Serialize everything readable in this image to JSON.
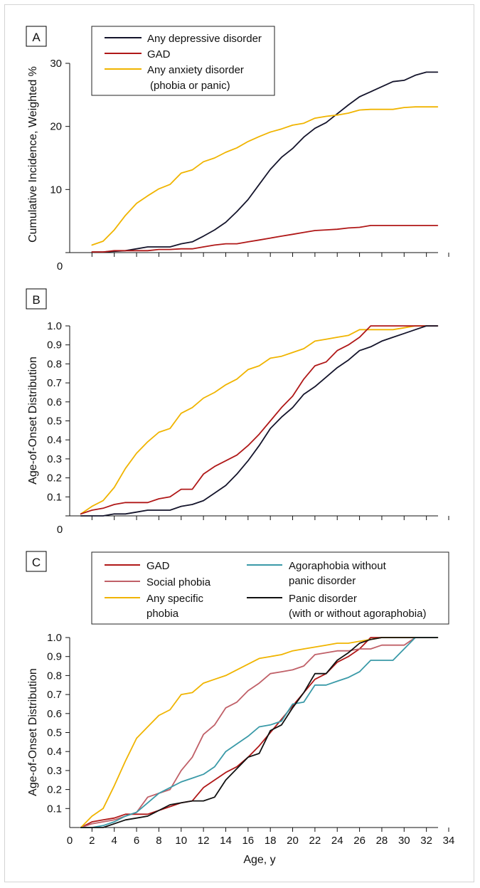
{
  "chart_data": [
    {
      "panel_label": "A",
      "type": "line",
      "xlabel": "",
      "ylabel": "Cumulative Incidence, Weighted %",
      "xlim": [
        0,
        34
      ],
      "ylim": [
        0,
        30
      ],
      "y_ticks": [
        "0",
        "10",
        "20",
        "30"
      ],
      "x_tick_values": [
        2,
        4,
        6,
        8,
        10,
        12,
        14,
        16,
        18,
        20,
        22,
        24,
        26,
        28,
        30,
        32,
        34
      ],
      "x_tick_labels_shown": false,
      "legend_position": "top-left",
      "series": [
        {
          "name": "Any depressive disorder",
          "color": "#14142b",
          "x": [
            2,
            3,
            4,
            5,
            6,
            7,
            8,
            9,
            10,
            11,
            12,
            13,
            14,
            15,
            16,
            17,
            18,
            19,
            20,
            21,
            22,
            23,
            24,
            25,
            26,
            27,
            28,
            29,
            30,
            31,
            32,
            33
          ],
          "y": [
            0.1,
            0.1,
            0.2,
            0.3,
            0.6,
            0.9,
            0.9,
            0.9,
            1.4,
            1.7,
            2.6,
            3.6,
            4.8,
            6.5,
            8.4,
            10.8,
            13.2,
            15.1,
            16.5,
            18.3,
            19.7,
            20.6,
            22.0,
            23.4,
            24.7,
            25.5,
            26.3,
            27.1,
            27.3,
            28.1,
            28.6,
            28.6
          ]
        },
        {
          "name": "GAD",
          "color": "#b01818",
          "x": [
            2,
            3,
            4,
            5,
            6,
            7,
            8,
            9,
            10,
            11,
            12,
            13,
            14,
            15,
            16,
            17,
            18,
            19,
            20,
            21,
            22,
            23,
            24,
            25,
            26,
            27,
            28,
            29,
            30,
            31,
            32,
            33
          ],
          "y": [
            0.1,
            0.1,
            0.3,
            0.3,
            0.3,
            0.3,
            0.5,
            0.5,
            0.6,
            0.6,
            0.9,
            1.2,
            1.4,
            1.4,
            1.7,
            2.0,
            2.3,
            2.6,
            2.9,
            3.2,
            3.5,
            3.6,
            3.7,
            3.9,
            4.0,
            4.3,
            4.3,
            4.3,
            4.3,
            4.3,
            4.3,
            4.3
          ]
        },
        {
          "name": "Any anxiety disorder",
          "name_line2": "(phobia or panic)",
          "color": "#f0b400",
          "x": [
            2,
            3,
            4,
            5,
            6,
            7,
            8,
            9,
            10,
            11,
            12,
            13,
            14,
            15,
            16,
            17,
            18,
            19,
            20,
            21,
            22,
            23,
            24,
            25,
            26,
            27,
            28,
            29,
            30,
            31,
            32,
            33
          ],
          "y": [
            1.2,
            1.8,
            3.6,
            5.9,
            7.8,
            9.0,
            10.1,
            10.8,
            12.6,
            13.1,
            14.4,
            15.0,
            15.9,
            16.6,
            17.6,
            18.4,
            19.1,
            19.6,
            20.2,
            20.5,
            21.3,
            21.6,
            21.8,
            22.1,
            22.6,
            22.7,
            22.7,
            22.7,
            23.0,
            23.1,
            23.1,
            23.1
          ]
        }
      ]
    },
    {
      "panel_label": "B",
      "type": "line",
      "xlabel": "",
      "ylabel": "Age-of-Onset Distribution",
      "xlim": [
        0,
        34
      ],
      "ylim": [
        0,
        1
      ],
      "y_ticks": [
        "0",
        "0.1",
        "0.2",
        "0.3",
        "0.4",
        "0.5",
        "0.6",
        "0.7",
        "0.8",
        "0.9",
        "1.0"
      ],
      "x_tick_values": [
        2,
        4,
        6,
        8,
        10,
        12,
        14,
        16,
        18,
        20,
        22,
        24,
        26,
        28,
        30,
        32,
        34
      ],
      "x_tick_labels_shown": false,
      "legend_position": "none",
      "series": [
        {
          "color": "#f0b400",
          "x": [
            1,
            2,
            3,
            4,
            5,
            6,
            7,
            8,
            9,
            10,
            11,
            12,
            13,
            14,
            15,
            16,
            17,
            18,
            19,
            20,
            21,
            22,
            23,
            24,
            25,
            26,
            27,
            28,
            29,
            30,
            31,
            32,
            33
          ],
          "y": [
            0.01,
            0.05,
            0.08,
            0.15,
            0.25,
            0.33,
            0.39,
            0.44,
            0.46,
            0.54,
            0.57,
            0.62,
            0.65,
            0.69,
            0.72,
            0.77,
            0.79,
            0.83,
            0.84,
            0.86,
            0.88,
            0.92,
            0.93,
            0.94,
            0.95,
            0.98,
            0.98,
            0.98,
            0.98,
            0.99,
            1.0,
            1.0,
            1.0
          ]
        },
        {
          "color": "#b01818",
          "x": [
            1,
            2,
            3,
            4,
            5,
            6,
            7,
            8,
            9,
            10,
            11,
            12,
            13,
            14,
            15,
            16,
            17,
            18,
            19,
            20,
            21,
            22,
            23,
            24,
            25,
            26,
            27,
            28,
            29,
            30,
            31,
            32,
            33
          ],
          "y": [
            0.01,
            0.03,
            0.04,
            0.06,
            0.07,
            0.07,
            0.07,
            0.09,
            0.1,
            0.14,
            0.14,
            0.22,
            0.26,
            0.29,
            0.32,
            0.37,
            0.43,
            0.5,
            0.57,
            0.63,
            0.72,
            0.79,
            0.81,
            0.87,
            0.9,
            0.94,
            1.0,
            1.0,
            1.0,
            1.0,
            1.0,
            1.0,
            1.0
          ]
        },
        {
          "color": "#14142b",
          "x": [
            1,
            2,
            3,
            4,
            5,
            6,
            7,
            8,
            9,
            10,
            11,
            12,
            13,
            14,
            15,
            16,
            17,
            18,
            19,
            20,
            21,
            22,
            23,
            24,
            25,
            26,
            27,
            28,
            29,
            30,
            31,
            32,
            33
          ],
          "y": [
            0.0,
            0.0,
            0.0,
            0.01,
            0.01,
            0.02,
            0.03,
            0.03,
            0.03,
            0.05,
            0.06,
            0.08,
            0.12,
            0.16,
            0.22,
            0.29,
            0.37,
            0.46,
            0.52,
            0.57,
            0.64,
            0.68,
            0.73,
            0.78,
            0.82,
            0.87,
            0.89,
            0.92,
            0.94,
            0.96,
            0.98,
            1.0,
            1.0
          ]
        }
      ]
    },
    {
      "panel_label": "C",
      "type": "line",
      "xlabel": "Age, y",
      "ylabel": "Age-of-Onset Distribution",
      "xlim": [
        0,
        34
      ],
      "ylim": [
        0,
        1
      ],
      "y_ticks": [
        "0.1",
        "0.2",
        "0.3",
        "0.4",
        "0.5",
        "0.6",
        "0.7",
        "0.8",
        "0.9",
        "1.0"
      ],
      "x_ticks": [
        "0",
        "2",
        "4",
        "6",
        "8",
        "10",
        "12",
        "14",
        "16",
        "18",
        "20",
        "22",
        "24",
        "26",
        "28",
        "30",
        "32",
        "34"
      ],
      "x_tick_labels_shown": true,
      "legend_position": "top",
      "series": [
        {
          "name": "GAD",
          "color": "#b01818",
          "x": [
            1,
            2,
            3,
            4,
            5,
            6,
            7,
            8,
            9,
            10,
            11,
            12,
            13,
            14,
            15,
            16,
            17,
            18,
            19,
            20,
            21,
            22,
            23,
            24,
            25,
            26,
            27,
            28,
            29,
            30,
            31,
            32,
            33
          ],
          "y": [
            0.0,
            0.03,
            0.04,
            0.05,
            0.07,
            0.07,
            0.07,
            0.09,
            0.11,
            0.13,
            0.14,
            0.21,
            0.25,
            0.29,
            0.32,
            0.37,
            0.43,
            0.5,
            0.57,
            0.64,
            0.71,
            0.78,
            0.81,
            0.87,
            0.9,
            0.94,
            1.0,
            1.0,
            1.0,
            1.0,
            1.0,
            1.0,
            1.0
          ]
        },
        {
          "name": "Social phobia",
          "color": "#c06068",
          "x": [
            1,
            2,
            3,
            4,
            5,
            6,
            7,
            8,
            9,
            10,
            11,
            12,
            13,
            14,
            15,
            16,
            17,
            18,
            19,
            20,
            21,
            22,
            23,
            24,
            25,
            26,
            27,
            28,
            29,
            30,
            31,
            32,
            33
          ],
          "y": [
            0.0,
            0.02,
            0.03,
            0.04,
            0.06,
            0.08,
            0.16,
            0.18,
            0.2,
            0.3,
            0.37,
            0.49,
            0.54,
            0.63,
            0.66,
            0.72,
            0.76,
            0.81,
            0.82,
            0.83,
            0.85,
            0.91,
            0.92,
            0.93,
            0.93,
            0.94,
            0.94,
            0.96,
            0.96,
            0.96,
            1.0,
            1.0,
            1.0
          ]
        },
        {
          "name": "Any specific",
          "name_line2": "phobia",
          "color": "#f0b400",
          "x": [
            1,
            2,
            3,
            4,
            5,
            6,
            7,
            8,
            9,
            10,
            11,
            12,
            13,
            14,
            15,
            16,
            17,
            18,
            19,
            20,
            21,
            22,
            23,
            24,
            25,
            26,
            27,
            28,
            29,
            30,
            31,
            32,
            33
          ],
          "y": [
            0.0,
            0.06,
            0.1,
            0.22,
            0.35,
            0.47,
            0.53,
            0.59,
            0.62,
            0.7,
            0.71,
            0.76,
            0.78,
            0.8,
            0.83,
            0.86,
            0.89,
            0.9,
            0.91,
            0.93,
            0.94,
            0.95,
            0.96,
            0.97,
            0.97,
            0.98,
            0.99,
            1.0,
            1.0,
            1.0,
            1.0,
            1.0,
            1.0
          ]
        },
        {
          "name": "Agoraphobia without",
          "name_line2": "panic disorder",
          "color": "#3a9aa8",
          "x": [
            1,
            2,
            3,
            4,
            5,
            6,
            7,
            8,
            9,
            10,
            11,
            12,
            13,
            14,
            15,
            16,
            17,
            18,
            19,
            20,
            21,
            22,
            23,
            24,
            25,
            26,
            27,
            28,
            29,
            30,
            31,
            32,
            33
          ],
          "y": [
            0.0,
            0.0,
            0.01,
            0.03,
            0.06,
            0.08,
            0.13,
            0.18,
            0.21,
            0.24,
            0.26,
            0.28,
            0.32,
            0.4,
            0.44,
            0.48,
            0.53,
            0.54,
            0.56,
            0.65,
            0.66,
            0.75,
            0.75,
            0.77,
            0.79,
            0.82,
            0.88,
            0.88,
            0.88,
            0.94,
            1.0,
            1.0,
            1.0
          ]
        },
        {
          "name": "Panic disorder",
          "name_line2": "(with or without agoraphobia)",
          "color": "#111111",
          "x": [
            1,
            2,
            3,
            4,
            5,
            6,
            7,
            8,
            9,
            10,
            11,
            12,
            13,
            14,
            15,
            16,
            17,
            18,
            19,
            20,
            21,
            22,
            23,
            24,
            25,
            26,
            27,
            28,
            29,
            30,
            31,
            32,
            33
          ],
          "y": [
            0.0,
            0.0,
            0.0,
            0.02,
            0.04,
            0.05,
            0.06,
            0.09,
            0.12,
            0.13,
            0.14,
            0.14,
            0.16,
            0.25,
            0.31,
            0.37,
            0.39,
            0.51,
            0.54,
            0.63,
            0.71,
            0.81,
            0.81,
            0.88,
            0.92,
            0.97,
            0.99,
            1.0,
            1.0,
            1.0,
            1.0,
            1.0,
            1.0
          ]
        }
      ]
    }
  ]
}
